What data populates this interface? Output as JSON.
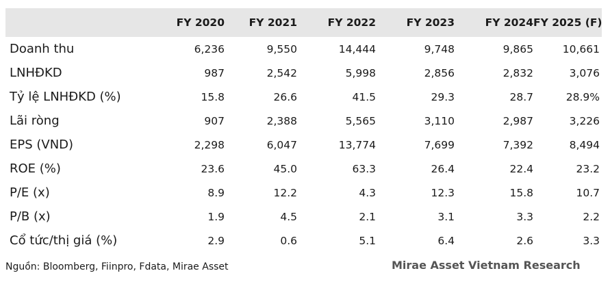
{
  "table": {
    "columns": [
      "FY 2020",
      "FY 2021",
      "FY 2022",
      "FY 2023",
      "FY 2024",
      "FY 2025 (F)"
    ],
    "rows": [
      {
        "label": "Doanh thu",
        "values": [
          "6,236",
          "9,550",
          "14,444",
          "9,748",
          "9,865",
          "10,661"
        ]
      },
      {
        "label": "LNHĐKD",
        "values": [
          "987",
          "2,542",
          "5,998",
          "2,856",
          "2,832",
          "3,076"
        ]
      },
      {
        "label": "Tỷ lệ LNHĐKD (%)",
        "values": [
          "15.8",
          "26.6",
          "41.5",
          "29.3",
          "28.7",
          "28.9%"
        ]
      },
      {
        "label": "Lãi ròng",
        "values": [
          "907",
          "2,388",
          "5,565",
          "3,110",
          "2,987",
          "3,226"
        ]
      },
      {
        "label": "EPS (VND)",
        "values": [
          "2,298",
          "6,047",
          "13,774",
          "7,699",
          "7,392",
          "8,494"
        ]
      },
      {
        "label": "ROE (%)",
        "values": [
          "23.6",
          "45.0",
          "63.3",
          "26.4",
          "22.4",
          "23.2"
        ]
      },
      {
        "label": "P/E (x)",
        "values": [
          "8.9",
          "12.2",
          "4.3",
          "12.3",
          "15.8",
          "10.7"
        ]
      },
      {
        "label": "P/B (x)",
        "values": [
          "1.9",
          "4.5",
          "2.1",
          "3.1",
          "3.3",
          "2.2"
        ]
      },
      {
        "label": "Cổ tức/thị giá (%)",
        "values": [
          "2.9",
          "0.6",
          "5.1",
          "6.4",
          "2.6",
          "3.3"
        ]
      }
    ]
  },
  "footer": {
    "source": "Nguồn: Bloomberg, Fiinpro, Fdata, Mirae Asset",
    "brand": "Mirae Asset Vietnam Research"
  }
}
